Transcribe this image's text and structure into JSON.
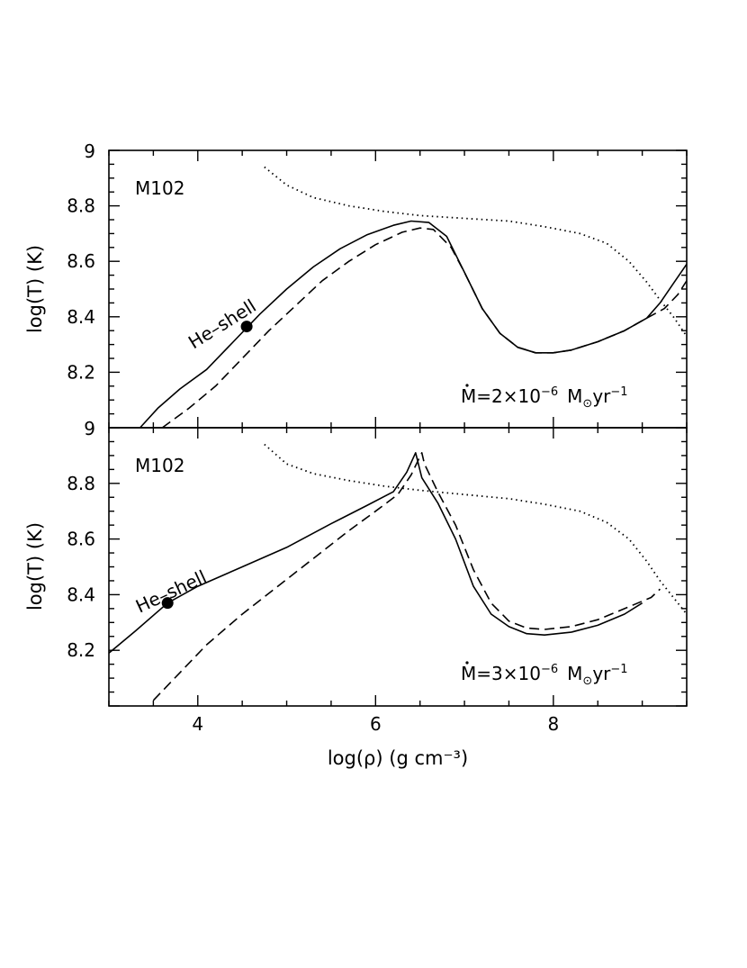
{
  "chart_data": [
    {
      "type": "line",
      "panel": "top",
      "label": "M102",
      "annotation": "He–shell",
      "mdot": {
        "prefix": "M",
        "mid": "=2×10",
        "exp": "−6",
        "unit": "M",
        "unit_sub": "⊙",
        "tail": "yr",
        "tail_exp": "−1"
      },
      "xlabel": "log(ρ) (g cm⁻³)",
      "ylabel": "log(T) (K)",
      "xlim": [
        3,
        9.5
      ],
      "ylim": [
        8.0,
        9.0
      ],
      "yticks": [
        8.2,
        8.4,
        8.6,
        8.8
      ],
      "ytick_labels": [
        "8.2",
        "8.4",
        "8.6",
        "8.8"
      ],
      "ytop_label": "9",
      "ybottom_label": "9",
      "marker": {
        "x": 4.55,
        "y": 8.365
      },
      "series": [
        {
          "name": "solid",
          "style": "solid",
          "points": [
            [
              3.35,
              8.0
            ],
            [
              3.55,
              8.07
            ],
            [
              3.8,
              8.14
            ],
            [
              4.1,
              8.21
            ],
            [
              4.4,
              8.31
            ],
            [
              4.7,
              8.41
            ],
            [
              5.0,
              8.5
            ],
            [
              5.3,
              8.58
            ],
            [
              5.6,
              8.645
            ],
            [
              5.9,
              8.695
            ],
            [
              6.2,
              8.73
            ],
            [
              6.4,
              8.745
            ],
            [
              6.6,
              8.74
            ],
            [
              6.8,
              8.69
            ],
            [
              7.0,
              8.56
            ],
            [
              7.2,
              8.43
            ],
            [
              7.4,
              8.34
            ],
            [
              7.6,
              8.29
            ],
            [
              7.8,
              8.27
            ],
            [
              8.0,
              8.27
            ],
            [
              8.2,
              8.28
            ],
            [
              8.5,
              8.31
            ],
            [
              8.8,
              8.35
            ],
            [
              9.05,
              8.395
            ],
            [
              9.2,
              8.45
            ],
            [
              9.35,
              8.52
            ],
            [
              9.5,
              8.59
            ]
          ]
        },
        {
          "name": "dashed",
          "style": "dashed",
          "points": [
            [
              3.6,
              8.0
            ],
            [
              3.9,
              8.07
            ],
            [
              4.2,
              8.15
            ],
            [
              4.5,
              8.25
            ],
            [
              4.8,
              8.35
            ],
            [
              5.1,
              8.44
            ],
            [
              5.4,
              8.53
            ],
            [
              5.7,
              8.6
            ],
            [
              6.0,
              8.66
            ],
            [
              6.3,
              8.705
            ],
            [
              6.5,
              8.72
            ],
            [
              6.65,
              8.715
            ],
            [
              6.85,
              8.65
            ],
            [
              7.0,
              8.56
            ],
            [
              7.2,
              8.43
            ],
            [
              7.4,
              8.34
            ],
            [
              7.6,
              8.29
            ],
            [
              7.8,
              8.27
            ],
            [
              8.0,
              8.27
            ],
            [
              8.2,
              8.28
            ],
            [
              8.5,
              8.31
            ],
            [
              8.8,
              8.35
            ],
            [
              9.05,
              8.395
            ],
            [
              9.25,
              8.43
            ],
            [
              9.4,
              8.48
            ],
            [
              9.5,
              8.53
            ]
          ]
        },
        {
          "name": "dotted",
          "style": "dotted",
          "points": [
            [
              4.75,
              8.94
            ],
            [
              5.0,
              8.875
            ],
            [
              5.3,
              8.83
            ],
            [
              5.7,
              8.8
            ],
            [
              6.1,
              8.78
            ],
            [
              6.5,
              8.765
            ],
            [
              7.0,
              8.755
            ],
            [
              7.5,
              8.745
            ],
            [
              7.9,
              8.725
            ],
            [
              8.3,
              8.7
            ],
            [
              8.6,
              8.665
            ],
            [
              8.85,
              8.6
            ],
            [
              9.05,
              8.525
            ],
            [
              9.2,
              8.46
            ],
            [
              9.35,
              8.4
            ],
            [
              9.5,
              8.33
            ]
          ]
        }
      ]
    },
    {
      "type": "line",
      "panel": "bottom",
      "label": "M102",
      "annotation": "He–shell",
      "mdot": {
        "prefix": "M",
        "mid": "=3×10",
        "exp": "−6",
        "unit": "M",
        "unit_sub": "⊙",
        "tail": "yr",
        "tail_exp": "−1"
      },
      "xlabel": "log(ρ) (g cm⁻³)",
      "ylabel": "log(T) (K)",
      "xlim": [
        3,
        9.5
      ],
      "ylim": [
        8.0,
        9.0
      ],
      "xticks": [
        4,
        6,
        8
      ],
      "xtick_labels": [
        "4",
        "6",
        "8"
      ],
      "yticks": [
        8.2,
        8.4,
        8.6,
        8.8
      ],
      "ytick_labels": [
        "8.2",
        "8.4",
        "8.6",
        "8.8"
      ],
      "marker": {
        "x": 3.66,
        "y": 8.37
      },
      "series": [
        {
          "name": "solid",
          "style": "solid",
          "points": [
            [
              3.0,
              8.19
            ],
            [
              3.3,
              8.27
            ],
            [
              3.66,
              8.37
            ],
            [
              4.0,
              8.43
            ],
            [
              4.5,
              8.5
            ],
            [
              5.0,
              8.57
            ],
            [
              5.5,
              8.655
            ],
            [
              5.9,
              8.72
            ],
            [
              6.2,
              8.77
            ],
            [
              6.35,
              8.84
            ],
            [
              6.45,
              8.91
            ],
            [
              6.52,
              8.82
            ],
            [
              6.7,
              8.73
            ],
            [
              6.9,
              8.6
            ],
            [
              7.1,
              8.43
            ],
            [
              7.3,
              8.33
            ],
            [
              7.5,
              8.285
            ],
            [
              7.7,
              8.26
            ],
            [
              7.9,
              8.255
            ],
            [
              8.2,
              8.265
            ],
            [
              8.5,
              8.29
            ],
            [
              8.8,
              8.33
            ],
            [
              9.0,
              8.37
            ]
          ]
        },
        {
          "name": "dashed",
          "style": "dashed",
          "points": [
            [
              3.5,
              8.02
            ],
            [
              3.8,
              8.12
            ],
            [
              4.1,
              8.22
            ],
            [
              4.5,
              8.33
            ],
            [
              4.9,
              8.43
            ],
            [
              5.3,
              8.53
            ],
            [
              5.7,
              8.63
            ],
            [
              6.0,
              8.7
            ],
            [
              6.25,
              8.76
            ],
            [
              6.4,
              8.83
            ],
            [
              6.52,
              8.91
            ],
            [
              6.55,
              8.87
            ],
            [
              6.7,
              8.77
            ],
            [
              6.9,
              8.65
            ],
            [
              7.1,
              8.49
            ],
            [
              7.3,
              8.37
            ],
            [
              7.5,
              8.305
            ],
            [
              7.7,
              8.28
            ],
            [
              7.9,
              8.275
            ],
            [
              8.2,
              8.285
            ],
            [
              8.5,
              8.31
            ],
            [
              8.8,
              8.35
            ],
            [
              9.1,
              8.39
            ],
            [
              9.2,
              8.42
            ]
          ]
        },
        {
          "name": "dotted",
          "style": "dotted",
          "points": [
            [
              4.75,
              8.94
            ],
            [
              5.0,
              8.87
            ],
            [
              5.3,
              8.835
            ],
            [
              5.7,
              8.81
            ],
            [
              6.1,
              8.79
            ],
            [
              6.5,
              8.775
            ],
            [
              7.0,
              8.76
            ],
            [
              7.5,
              8.745
            ],
            [
              7.9,
              8.725
            ],
            [
              8.3,
              8.7
            ],
            [
              8.6,
              8.66
            ],
            [
              8.85,
              8.6
            ],
            [
              9.05,
              8.52
            ],
            [
              9.2,
              8.45
            ],
            [
              9.35,
              8.39
            ],
            [
              9.5,
              8.33
            ]
          ]
        }
      ]
    }
  ]
}
